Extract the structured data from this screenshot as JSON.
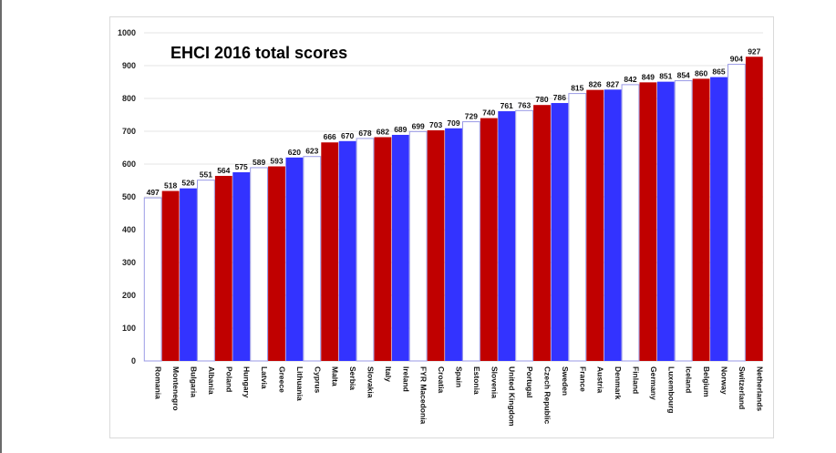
{
  "chart_data": {
    "type": "bar",
    "title": "EHCI 2016 total scores",
    "xlabel": "",
    "ylabel": "",
    "ylim": [
      0,
      1000
    ],
    "yticks": [
      0,
      100,
      200,
      300,
      400,
      500,
      600,
      700,
      800,
      900,
      1000
    ],
    "grid": true,
    "legend": "none",
    "colors": {
      "red": "#c00000",
      "blue": "#3333ff",
      "white": "#ffffff",
      "outline": "#9a9ae6"
    },
    "categories": [
      "Romania",
      "Montenegro",
      "Bulgaria",
      "Albania",
      "Poland",
      "Hungary",
      "Latvia",
      "Greece",
      "Lithuania",
      "Cyprus",
      "Malta",
      "Serbia",
      "Slovakia",
      "Italy",
      "Ireland",
      "FYR Macedonia",
      "Croatia",
      "Spain",
      "Estonia",
      "Slovenia",
      "United Kingdom",
      "Portugal",
      "Czech Republic",
      "Sweden",
      "France",
      "Austria",
      "Denmark",
      "Finland",
      "Germany",
      "Luxembourg",
      "Iceland",
      "Belgium",
      "Norway",
      "Switzerland",
      "Netherlands"
    ],
    "values": [
      497,
      518,
      526,
      551,
      564,
      575,
      589,
      593,
      620,
      623,
      666,
      670,
      678,
      682,
      689,
      699,
      703,
      709,
      729,
      740,
      761,
      763,
      780,
      786,
      815,
      826,
      827,
      842,
      849,
      851,
      854,
      860,
      865,
      904,
      927
    ],
    "bar_colors": [
      "white",
      "red",
      "blue",
      "white",
      "red",
      "blue",
      "white",
      "red",
      "blue",
      "white",
      "red",
      "blue",
      "white",
      "red",
      "blue",
      "white",
      "red",
      "blue",
      "white",
      "red",
      "blue",
      "white",
      "red",
      "blue",
      "white",
      "red",
      "blue",
      "white",
      "red",
      "blue",
      "white",
      "red",
      "blue",
      "white",
      "red"
    ]
  }
}
